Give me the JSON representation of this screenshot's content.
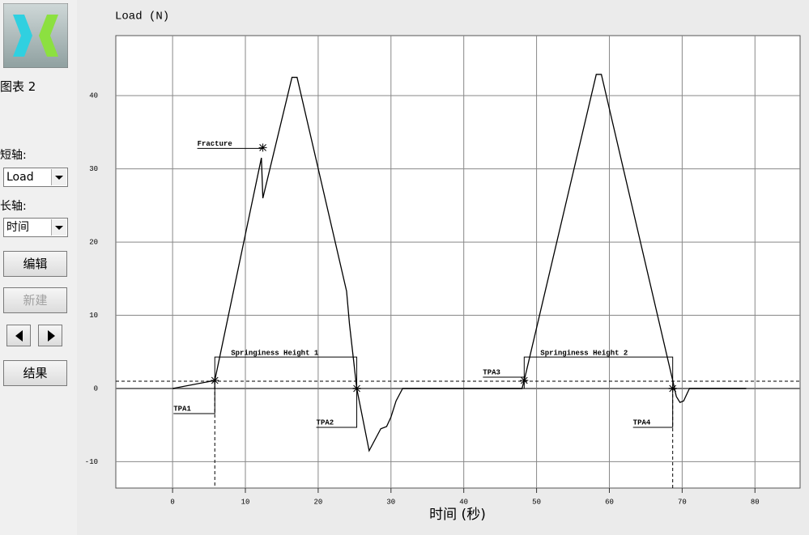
{
  "sidebar": {
    "chart_name": "图表 2",
    "short_axis_label": "短轴:",
    "short_axis_value": "Load",
    "long_axis_label": "长轴:",
    "long_axis_value": "时间",
    "edit_button": "编辑",
    "new_button": "新建",
    "result_button": "结果"
  },
  "chart_data": {
    "type": "line",
    "title": "Load (N)",
    "x_label": "时间 (秒)",
    "x": [
      0,
      5.8,
      12.2,
      12.4,
      16.4,
      17.1,
      23.9,
      24.3,
      25.3,
      27,
      28.6,
      29.4,
      30,
      30.7,
      31.6,
      48,
      48.3,
      58.2,
      58.9,
      68.7,
      69.2,
      69.7,
      70.2,
      71,
      78.8
    ],
    "values": [
      0,
      1.1,
      31.5,
      26,
      42.5,
      42.5,
      13.3,
      8.8,
      0,
      -8.5,
      -5.5,
      -5.2,
      -3.9,
      -1.7,
      0,
      0,
      1.1,
      42.9,
      42.9,
      1.1,
      -1.1,
      -1.9,
      -1.7,
      0,
      0
    ],
    "color": "#000000",
    "xlim": [
      -7.8,
      86.2
    ],
    "ylim": [
      -13.6,
      48.2
    ],
    "xticks": [
      0,
      10,
      20,
      30,
      40,
      50,
      60,
      70,
      80
    ],
    "yticks": [
      -10,
      0,
      10,
      20,
      30,
      40
    ],
    "grid": true,
    "threshold": 1,
    "annotations": [
      {
        "text": "TPA1",
        "x": 5.8,
        "y": 1.1
      },
      {
        "text": "TPA2",
        "x": 25.3,
        "y": 0
      },
      {
        "text": "TPA3",
        "x": 48.3,
        "y": 1.1
      },
      {
        "text": "TPA4",
        "x": 68.7,
        "y": 0
      },
      {
        "text": "Fracture",
        "x": 12.4,
        "y": 32.9
      }
    ],
    "springiness": [
      {
        "text": "Springiness Height 1",
        "x": [
          5.8,
          25.3
        ],
        "level": 4.3
      },
      {
        "text": "Springiness Height 2",
        "x": [
          48.3,
          68.7
        ],
        "level": 4.3
      }
    ]
  }
}
